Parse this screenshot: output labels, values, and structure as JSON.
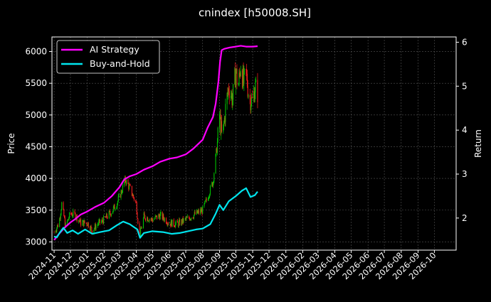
{
  "chart_data": {
    "type": "line",
    "title": "cnindex [h50008.SH]",
    "ylabel_left": "Price",
    "ylabel_right": "Return",
    "xlabel": "",
    "grid": true,
    "legend_position": "top-left",
    "x_ticks": [
      "2024-11",
      "2024-12",
      "2025-01",
      "2025-02",
      "2025-03",
      "2025-04",
      "2025-05",
      "2025-06",
      "2025-07",
      "2025-08",
      "2025-09",
      "2025-10",
      "2025-11",
      "2025-12",
      "2026-01",
      "2026-02",
      "2026-03",
      "2026-04",
      "2026-05",
      "2026-06",
      "2026-07",
      "2026-08",
      "2026-09",
      "2026-10"
    ],
    "x_range": [
      "2024-10-28",
      "2026-11-10"
    ],
    "left_axis": {
      "ylim": [
        2870,
        6230
      ],
      "ticks": [
        3000,
        3500,
        4000,
        4500,
        5000,
        5500,
        6000
      ]
    },
    "right_axis": {
      "ylim": [
        1.27,
        6.12
      ],
      "ticks": [
        2,
        3,
        4,
        5,
        6
      ]
    },
    "colors": {
      "ai": "#ff00ff",
      "bh": "#00e5ee",
      "up": "#00cc00",
      "down": "#ff2020",
      "grid": "#555555"
    },
    "series": [
      {
        "name": "AI Strategy",
        "axis": "right",
        "points": [
          [
            "2024-11-01",
            1.5
          ],
          [
            "2024-11-10",
            1.64
          ],
          [
            "2024-11-20",
            1.78
          ],
          [
            "2024-12-01",
            1.9
          ],
          [
            "2024-12-10",
            1.98
          ],
          [
            "2024-12-20",
            2.08
          ],
          [
            "2025-01-01",
            2.15
          ],
          [
            "2025-01-15",
            2.25
          ],
          [
            "2025-02-01",
            2.35
          ],
          [
            "2025-02-15",
            2.5
          ],
          [
            "2025-03-01",
            2.7
          ],
          [
            "2025-03-10",
            2.88
          ],
          [
            "2025-03-20",
            2.95
          ],
          [
            "2025-04-01",
            3.0
          ],
          [
            "2025-04-15",
            3.1
          ],
          [
            "2025-05-01",
            3.18
          ],
          [
            "2025-05-15",
            3.28
          ],
          [
            "2025-06-01",
            3.35
          ],
          [
            "2025-06-15",
            3.38
          ],
          [
            "2025-07-01",
            3.45
          ],
          [
            "2025-07-15",
            3.58
          ],
          [
            "2025-08-01",
            3.78
          ],
          [
            "2025-08-10",
            4.05
          ],
          [
            "2025-08-20",
            4.3
          ],
          [
            "2025-08-25",
            4.6
          ],
          [
            "2025-08-30",
            5.1
          ],
          [
            "2025-09-02",
            5.55
          ],
          [
            "2025-09-05",
            5.82
          ],
          [
            "2025-09-10",
            5.85
          ],
          [
            "2025-09-20",
            5.88
          ],
          [
            "2025-10-01",
            5.9
          ],
          [
            "2025-10-10",
            5.92
          ],
          [
            "2025-10-20",
            5.9
          ],
          [
            "2025-11-01",
            5.9
          ],
          [
            "2025-11-10",
            5.91
          ]
        ]
      },
      {
        "name": "Buy-and-Hold",
        "axis": "right",
        "points": [
          [
            "2024-11-01",
            1.58
          ],
          [
            "2024-11-06",
            1.56
          ],
          [
            "2024-11-12",
            1.68
          ],
          [
            "2024-11-18",
            1.78
          ],
          [
            "2024-11-25",
            1.66
          ],
          [
            "2024-12-05",
            1.72
          ],
          [
            "2024-12-15",
            1.64
          ],
          [
            "2024-12-28",
            1.74
          ],
          [
            "2025-01-10",
            1.64
          ],
          [
            "2025-01-25",
            1.68
          ],
          [
            "2025-02-10",
            1.72
          ],
          [
            "2025-02-25",
            1.84
          ],
          [
            "2025-03-08",
            1.92
          ],
          [
            "2025-03-20",
            1.86
          ],
          [
            "2025-04-03",
            1.74
          ],
          [
            "2025-04-08",
            1.55
          ],
          [
            "2025-04-15",
            1.66
          ],
          [
            "2025-04-30",
            1.7
          ],
          [
            "2025-05-20",
            1.68
          ],
          [
            "2025-06-05",
            1.64
          ],
          [
            "2025-06-20",
            1.66
          ],
          [
            "2025-07-05",
            1.7
          ],
          [
            "2025-07-20",
            1.74
          ],
          [
            "2025-08-01",
            1.76
          ],
          [
            "2025-08-15",
            1.86
          ],
          [
            "2025-08-25",
            2.1
          ],
          [
            "2025-09-01",
            2.3
          ],
          [
            "2025-09-08",
            2.18
          ],
          [
            "2025-09-18",
            2.38
          ],
          [
            "2025-10-01",
            2.5
          ],
          [
            "2025-10-12",
            2.62
          ],
          [
            "2025-10-20",
            2.68
          ],
          [
            "2025-10-28",
            2.48
          ],
          [
            "2025-11-05",
            2.52
          ],
          [
            "2025-11-10",
            2.6
          ]
        ]
      }
    ],
    "price_series": {
      "name": "Price",
      "axis": "left",
      "points": [
        [
          "2024-11-01",
          3150
        ],
        [
          "2024-11-10",
          3300
        ],
        [
          "2024-11-15",
          3600
        ],
        [
          "2024-11-22",
          3250
        ],
        [
          "2024-12-01",
          3450
        ],
        [
          "2024-12-10",
          3420
        ],
        [
          "2024-12-20",
          3300
        ],
        [
          "2025-01-01",
          3300
        ],
        [
          "2025-01-10",
          3180
        ],
        [
          "2025-01-20",
          3280
        ],
        [
          "2025-02-01",
          3350
        ],
        [
          "2025-02-15",
          3480
        ],
        [
          "2025-02-25",
          3620
        ],
        [
          "2025-03-05",
          3800
        ],
        [
          "2025-03-12",
          3980
        ],
        [
          "2025-03-20",
          3850
        ],
        [
          "2025-04-01",
          3600
        ],
        [
          "2025-04-07",
          3080
        ],
        [
          "2025-04-15",
          3400
        ],
        [
          "2025-05-01",
          3350
        ],
        [
          "2025-05-15",
          3420
        ],
        [
          "2025-06-01",
          3300
        ],
        [
          "2025-06-15",
          3280
        ],
        [
          "2025-07-01",
          3350
        ],
        [
          "2025-07-15",
          3420
        ],
        [
          "2025-08-01",
          3500
        ],
        [
          "2025-08-10",
          3700
        ],
        [
          "2025-08-20",
          3950
        ],
        [
          "2025-08-28",
          4550
        ],
        [
          "2025-09-01",
          5000
        ],
        [
          "2025-09-06",
          4600
        ],
        [
          "2025-09-12",
          5100
        ],
        [
          "2025-09-18",
          5450
        ],
        [
          "2025-09-25",
          5250
        ],
        [
          "2025-10-01",
          5700
        ],
        [
          "2025-10-05",
          5400
        ],
        [
          "2025-10-10",
          5800
        ],
        [
          "2025-10-15",
          5500
        ],
        [
          "2025-10-20",
          5650
        ],
        [
          "2025-10-25",
          5300
        ],
        [
          "2025-11-01",
          5200
        ],
        [
          "2025-11-05",
          5450
        ],
        [
          "2025-11-10",
          5350
        ]
      ]
    }
  }
}
